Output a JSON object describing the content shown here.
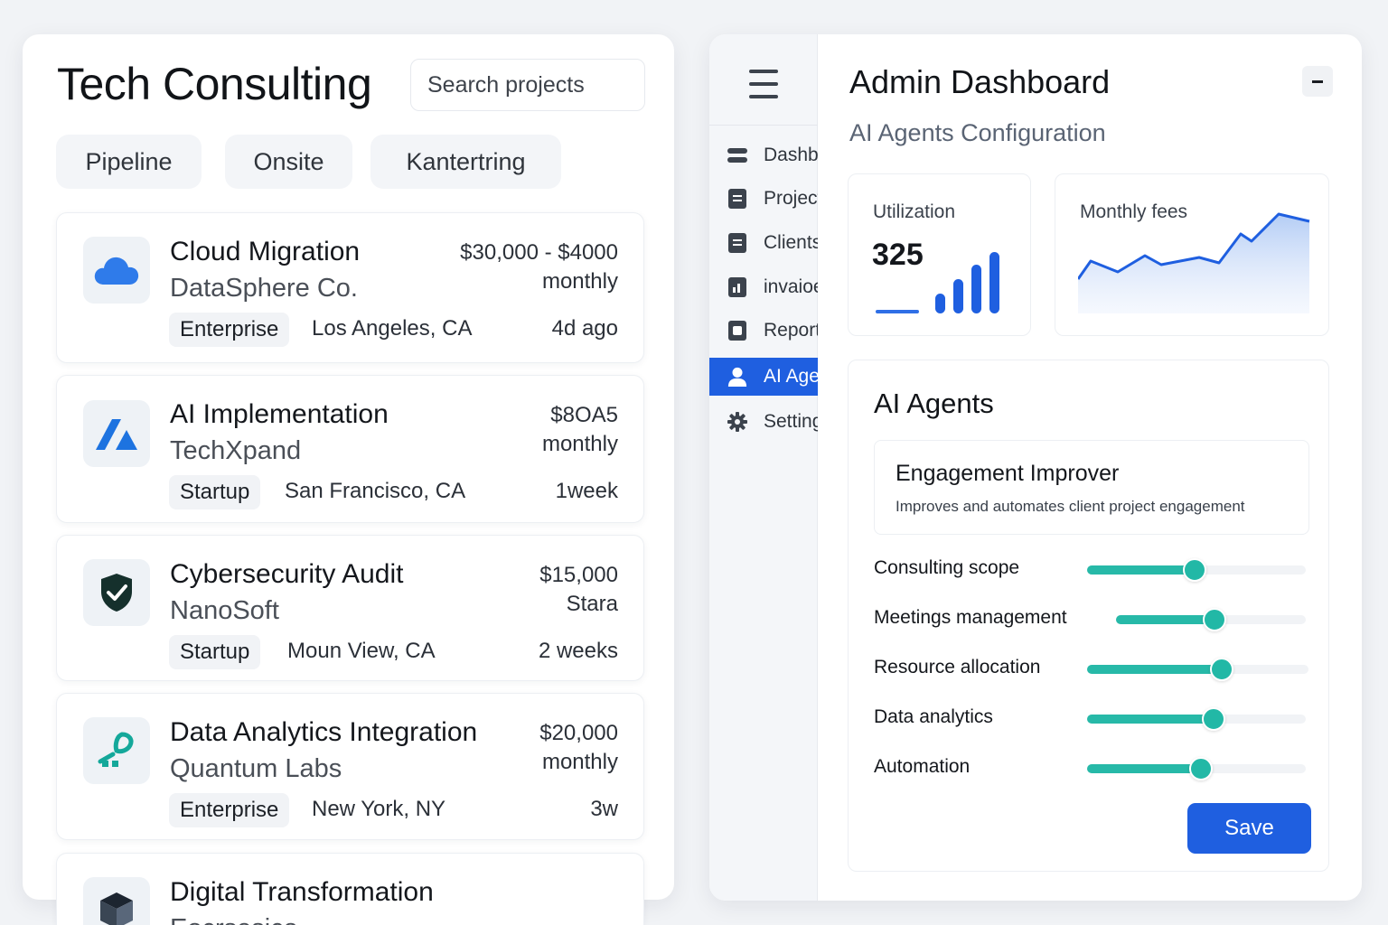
{
  "left": {
    "title": "Tech Consulting",
    "search_placeholder": "Search projects",
    "tabs": [
      {
        "label": "Pipeline"
      },
      {
        "label": "Onsite"
      },
      {
        "label": "Kantertring"
      }
    ],
    "projects": [
      {
        "title": "Cloud Migration",
        "company": "DataSphere Co.",
        "price_line1": "$30,000 - $4000",
        "price_line2": "monthly",
        "tier": "Enterprise",
        "location": "Los Angeles, CA",
        "time": "4d ago",
        "icon": "cloud-icon"
      },
      {
        "title": "AI Implementation",
        "company": "TechXpand",
        "price_line1": "$8OA5",
        "price_line2": "monthly",
        "tier": "Startup",
        "location": "San Francisco, CA",
        "time": "1week",
        "icon": "ai-logo-icon"
      },
      {
        "title": "Cybersecurity Audit",
        "company": "NanoSoft",
        "price_line1": "$15,000",
        "price_line2": "Stara",
        "tier": "Startup",
        "location": "Moun View, CA",
        "time": "2 weeks",
        "icon": "shield-check-icon"
      },
      {
        "title": "Data Analytics Integration",
        "company": "Quantum Labs",
        "price_line1": "$20,000",
        "price_line2": "monthly",
        "tier": "Enterprise",
        "location": "New York, NY",
        "time": "3w",
        "icon": "analytics-logo-icon"
      },
      {
        "title": "Digital Transformation",
        "company": "Eocrsesica",
        "icon": "cube-icon"
      }
    ]
  },
  "admin": {
    "title": "Admin Dashboard",
    "subtitle": "AI Agents Configuration",
    "sidebar": [
      {
        "label": "Dashboard",
        "icon": "dashboard-icon"
      },
      {
        "label": "Projects",
        "icon": "document-icon"
      },
      {
        "label": "Clients",
        "icon": "clients-icon"
      },
      {
        "label": "invaioes",
        "icon": "invoice-icon"
      },
      {
        "label": "Reports",
        "icon": "report-icon"
      },
      {
        "label": "AI Agents",
        "icon": "user-icon"
      },
      {
        "label": "Settings",
        "icon": "gear-icon"
      }
    ],
    "utilization": {
      "label": "Utilization",
      "value": "325"
    },
    "monthly_fees": {
      "label": "Monthly fees"
    },
    "agents": {
      "title": "AI Agents",
      "agent_name": "Engagement Improver",
      "agent_desc": "Improves and automates client project engagement",
      "sliders": [
        {
          "label": "Consulting scope",
          "value": 0.49
        },
        {
          "label": "Meetings management",
          "value": 0.52
        },
        {
          "label": "Resource allocation",
          "value": 0.61
        },
        {
          "label": "Data analytics",
          "value": 0.58
        },
        {
          "label": "Automation",
          "value": 0.52
        }
      ],
      "save_label": "Save"
    },
    "colors": {
      "accent": "#1f5fe0",
      "slider": "#27b9a8"
    }
  }
}
